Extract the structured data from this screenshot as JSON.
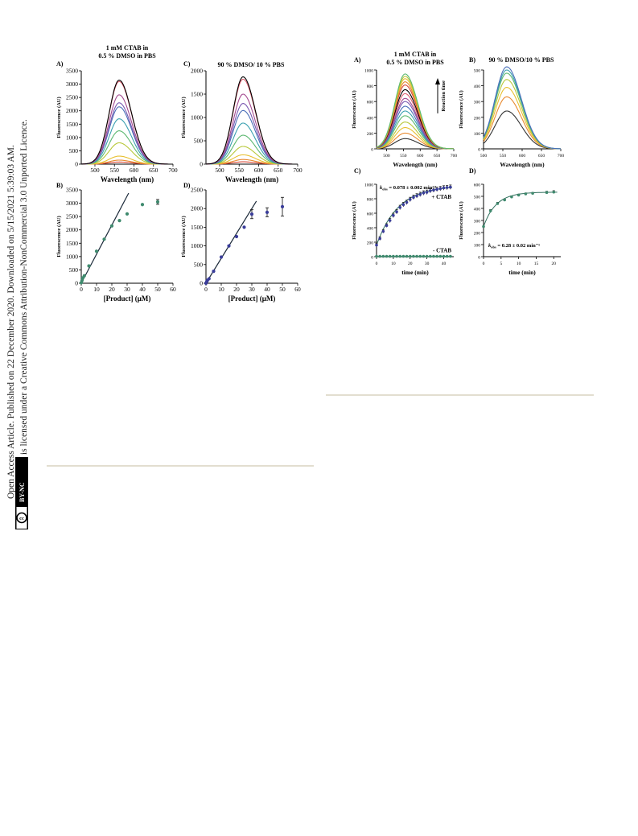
{
  "margin": {
    "line1": "Open Access Article. Published on 22 December 2020. Downloaded on 5/15/2021 5:39:03 AM.",
    "line2": "This article is licensed under a Creative Commons Attribution-NonCommercial 3.0 Unported Licence.",
    "badge_text": "BY-NC",
    "badge_icon": "cc-icon"
  },
  "colors": {
    "curve_palette": [
      "#000000",
      "#e06070",
      "#a44a90",
      "#7a58b0",
      "#4b6fb8",
      "#3aa0b0",
      "#5cb870",
      "#b8c83a",
      "#e8c030",
      "#e88a30",
      "#d84a38"
    ],
    "green_point": "#3f8a6e",
    "blue_point": "#3a3d9a",
    "fit_line": "#1c2a3a",
    "rule": "#d8d3c0"
  },
  "chart_data": [
    {
      "id": "left-A",
      "panel_label": "A)",
      "title": "1 mM CTAB in 0.5 % DMSO in PBS",
      "type": "line",
      "xlabel": "Wavelength (nm)",
      "ylabel": "Fluorescence (AU)",
      "xlim": [
        465,
        700
      ],
      "ylim": [
        0,
        3500
      ],
      "xticks": [
        500,
        550,
        600,
        650,
        700
      ],
      "yticks": [
        0,
        500,
        1000,
        1500,
        2000,
        2500,
        3000,
        3500
      ],
      "peak_x": 562,
      "series_peaks": [
        3150,
        3100,
        2600,
        2300,
        2150,
        1700,
        1250,
        800,
        300,
        150,
        80
      ]
    },
    {
      "id": "left-C",
      "panel_label": "C)",
      "title": "90 % DMSO/ 10 % PBS",
      "type": "line",
      "xlabel": "Wavelength (nm)",
      "ylabel": "Fluorescence (AU)",
      "xlim": [
        465,
        700
      ],
      "ylim": [
        0,
        2000
      ],
      "xticks": [
        500,
        550,
        600,
        650,
        700
      ],
      "yticks": [
        0,
        500,
        1000,
        1500,
        2000
      ],
      "peak_x": 560,
      "series_peaks": [
        1870,
        1820,
        1500,
        1300,
        1150,
        880,
        620,
        380,
        200,
        100,
        50
      ]
    },
    {
      "id": "left-B",
      "panel_label": "B)",
      "type": "scatter",
      "xlabel": "[Product] (μM)",
      "ylabel": "Fluorescence (AU)",
      "xlim": [
        0,
        60
      ],
      "ylim": [
        0,
        3500
      ],
      "xticks": [
        0,
        10,
        20,
        30,
        40,
        50,
        60
      ],
      "yticks": [
        0,
        500,
        1000,
        1500,
        2000,
        2500,
        3000,
        3500
      ],
      "points": {
        "x": [
          0,
          0.5,
          1,
          2,
          5,
          10,
          15,
          20,
          25,
          30,
          40,
          50
        ],
        "y": [
          20,
          100,
          200,
          280,
          650,
          1200,
          1650,
          2150,
          2350,
          2600,
          2950,
          3050
        ],
        "err": [
          0,
          0,
          0,
          0,
          0,
          0,
          0,
          0,
          0,
          0,
          0,
          90
        ]
      },
      "fit": {
        "x": [
          0,
          31
        ],
        "y": [
          0,
          3380
        ]
      }
    },
    {
      "id": "left-D",
      "panel_label": "D)",
      "type": "scatter",
      "xlabel": "[Product] (μM)",
      "ylabel": "Fluorescence (AU)",
      "xlim": [
        0,
        60
      ],
      "ylim": [
        0,
        2500
      ],
      "xticks": [
        0,
        10,
        20,
        30,
        40,
        50,
        60
      ],
      "yticks": [
        0,
        500,
        1000,
        1500,
        2000,
        2500
      ],
      "points": {
        "x": [
          0,
          0.5,
          1,
          2,
          5,
          10,
          15,
          20,
          25,
          30,
          40,
          50
        ],
        "y": [
          0,
          40,
          80,
          120,
          320,
          700,
          1000,
          1250,
          1500,
          1850,
          1900,
          2050
        ],
        "err": [
          0,
          0,
          0,
          0,
          0,
          0,
          0,
          0,
          0,
          120,
          120,
          250
        ]
      },
      "fit": {
        "x": [
          0,
          33
        ],
        "y": [
          0,
          2200
        ]
      }
    },
    {
      "id": "right-A",
      "panel_label": "A)",
      "title": "1 mM CTAB in 0.5 % DMSO in PBS",
      "type": "line",
      "xlabel": "Wavelength (nm)",
      "ylabel": "Fluorescence (AU)",
      "xlim": [
        470,
        700
      ],
      "ylim": [
        0,
        1000
      ],
      "xticks": [
        500,
        550,
        600,
        650,
        700
      ],
      "yticks": [
        0,
        200,
        400,
        600,
        800,
        1000
      ],
      "peak_x": 555,
      "series_peaks": [
        950,
        920,
        890,
        850,
        810,
        750,
        700,
        640,
        600,
        540,
        480,
        420,
        340,
        270,
        200,
        130
      ],
      "annotation": "Reaction time"
    },
    {
      "id": "right-B",
      "panel_label": "B)",
      "title": "90 % DMSO/10 % PBS",
      "type": "line",
      "xlabel": "Wavelength (nm)",
      "ylabel": "Fluorescence (AU)",
      "xlim": [
        500,
        700
      ],
      "ylim": [
        0,
        500
      ],
      "xticks": [
        500,
        550,
        600,
        650,
        700
      ],
      "yticks": [
        0,
        100,
        200,
        300,
        400,
        500
      ],
      "peak_x": 560,
      "series_peaks": [
        520,
        500,
        480,
        440,
        390,
        330,
        240
      ]
    },
    {
      "id": "right-C",
      "panel_label": "C)",
      "type": "scatter",
      "xlabel": "time (min)",
      "ylabel": "Fluorescence (AU)",
      "xlim": [
        0,
        46
      ],
      "ylim": [
        0,
        1000
      ],
      "xticks": [
        0,
        10,
        20,
        30,
        40
      ],
      "yticks": [
        0,
        200,
        400,
        600,
        800,
        1000
      ],
      "kobs_label": "k",
      "kobs_sub": "obs",
      "kobs_value": " = 0.078 ± 0.002 min⁻¹",
      "series": [
        {
          "name": "+ CTAB",
          "x": [
            0,
            2,
            4,
            6,
            8,
            10,
            12,
            14,
            16,
            18,
            20,
            22,
            24,
            26,
            28,
            30,
            32,
            34,
            36,
            38,
            40,
            42,
            44
          ],
          "y": [
            160,
            250,
            350,
            430,
            500,
            570,
            620,
            680,
            720,
            750,
            790,
            820,
            840,
            860,
            880,
            890,
            910,
            920,
            930,
            940,
            950,
            955,
            960
          ],
          "err": [
            25,
            25,
            25,
            25,
            30,
            30,
            30,
            30,
            30,
            30,
            30,
            30,
            30,
            30,
            30,
            30,
            30,
            30,
            30,
            30,
            30,
            30,
            30
          ]
        },
        {
          "name": "- CTAB",
          "x": [
            0,
            2,
            4,
            6,
            8,
            10,
            12,
            14,
            16,
            18,
            20,
            22,
            24,
            26,
            28,
            30,
            32,
            34,
            36,
            38,
            40,
            42,
            44
          ],
          "y": [
            5,
            5,
            5,
            5,
            5,
            5,
            5,
            5,
            5,
            5,
            5,
            5,
            5,
            5,
            5,
            5,
            5,
            5,
            5,
            5,
            5,
            5,
            5
          ],
          "err": [
            0,
            0,
            0,
            0,
            0,
            0,
            0,
            0,
            0,
            0,
            0,
            0,
            0,
            0,
            0,
            0,
            0,
            0,
            0,
            0,
            0,
            0,
            0
          ]
        }
      ]
    },
    {
      "id": "right-D",
      "panel_label": "D)",
      "type": "scatter",
      "xlabel": "time (min)",
      "ylabel": "Fluorescence (AU)",
      "xlim": [
        0,
        22
      ],
      "ylim": [
        0,
        600
      ],
      "xticks": [
        0,
        5,
        10,
        15,
        20
      ],
      "yticks": [
        0,
        100,
        200,
        300,
        400,
        500,
        600
      ],
      "kobs_label": "k",
      "kobs_sub": "obs",
      "kobs_value": " = 0.28 ± 0.02 min⁻¹",
      "series": [
        {
          "name": "",
          "x": [
            0,
            2,
            4,
            6,
            8,
            10,
            12,
            14,
            18,
            20
          ],
          "y": [
            250,
            380,
            440,
            470,
            495,
            510,
            520,
            525,
            532,
            535
          ],
          "err": [
            0,
            10,
            10,
            8,
            8,
            8,
            8,
            8,
            10,
            12
          ]
        }
      ]
    }
  ]
}
